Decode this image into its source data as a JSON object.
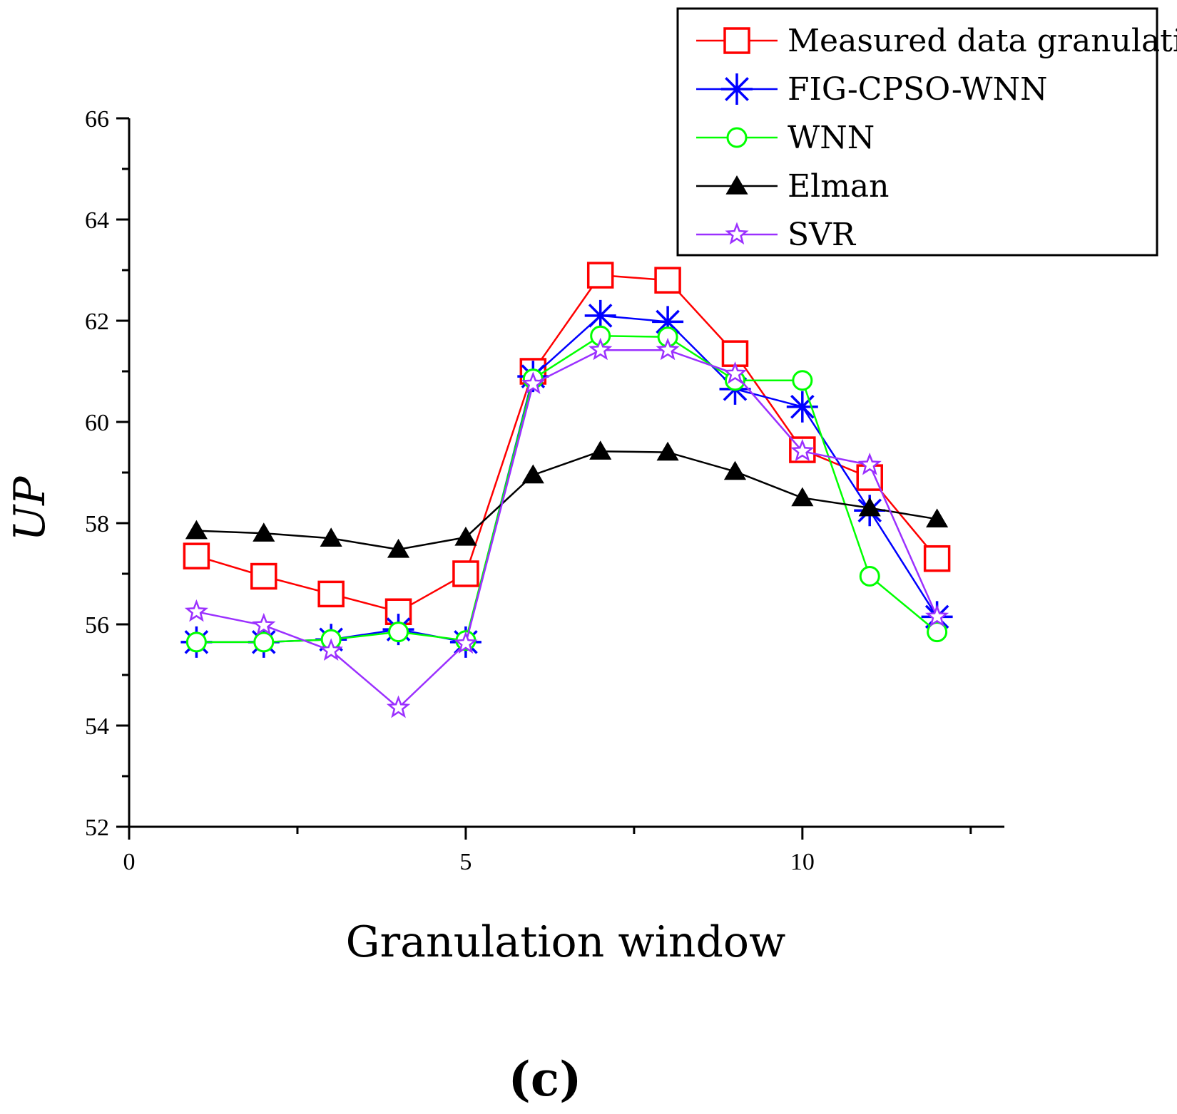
{
  "chart_data": {
    "type": "line",
    "title": "",
    "xlabel": "Granulation window",
    "ylabel": "UP",
    "xlim": [
      0,
      13.0
    ],
    "ylim": [
      52,
      66
    ],
    "xticks": [
      0,
      5,
      10
    ],
    "xtick_labels": [
      "0",
      "5",
      "10"
    ],
    "yticks": [
      52,
      54,
      56,
      58,
      60,
      62,
      64,
      66
    ],
    "ytick_labels": [
      "52",
      "54",
      "56",
      "58",
      "60",
      "62",
      "64",
      "66"
    ],
    "grid": false,
    "legend_position": "top-right",
    "panel_label": "(c)",
    "x": [
      1,
      2,
      3,
      4,
      5,
      6,
      7,
      8,
      9,
      10,
      11,
      12
    ],
    "series": [
      {
        "name": "Measured data granulation",
        "color": "#ff0000",
        "marker": "square",
        "values": [
          57.35,
          56.95,
          56.6,
          56.25,
          57.0,
          61.0,
          62.9,
          62.8,
          61.35,
          59.45,
          58.9,
          57.3
        ]
      },
      {
        "name": "FIG-CPSO-WNN",
        "color": "#0000ff",
        "marker": "asterisk",
        "values": [
          55.65,
          55.65,
          55.7,
          55.9,
          55.65,
          60.9,
          62.1,
          61.98,
          60.65,
          60.3,
          58.25,
          56.15
        ]
      },
      {
        "name": "WNN",
        "color": "#00ff00",
        "marker": "circle",
        "values": [
          55.65,
          55.65,
          55.7,
          55.85,
          55.68,
          60.85,
          61.7,
          61.68,
          60.82,
          60.82,
          56.95,
          55.85
        ]
      },
      {
        "name": "Elman",
        "color": "#000000",
        "marker": "triangle",
        "values": [
          57.85,
          57.8,
          57.7,
          57.48,
          57.72,
          58.95,
          59.42,
          59.4,
          59.02,
          58.5,
          58.3,
          58.08
        ]
      },
      {
        "name": "SVR",
        "color": "#9b30ff",
        "marker": "star",
        "values": [
          56.25,
          55.98,
          55.48,
          54.35,
          55.62,
          60.75,
          61.42,
          61.42,
          60.95,
          59.42,
          59.15,
          56.15
        ]
      }
    ]
  }
}
